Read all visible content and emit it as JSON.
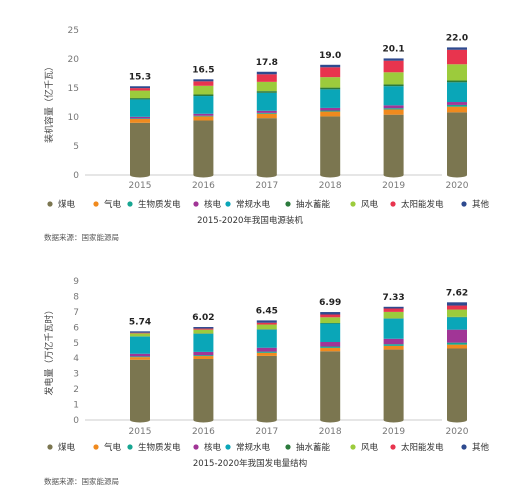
{
  "chart_data": [
    {
      "type": "bar",
      "stacked": true,
      "caption": "2015-2020年我国电源装机",
      "ylabel": "装机容量（亿千瓦）",
      "source": "数据来源：国家能源局",
      "ylim": [
        0,
        25
      ],
      "yticks": [
        0,
        5,
        10,
        15,
        20,
        25
      ],
      "categories": [
        "2015",
        "2016",
        "2017",
        "2018",
        "2019",
        "2020"
      ],
      "totals": [
        "15.3",
        "16.5",
        "17.8",
        "19.0",
        "20.1",
        "22.0"
      ],
      "series": [
        {
          "name": "煤电",
          "color": "#7b7650",
          "values": [
            9.0,
            9.4,
            9.8,
            10.1,
            10.4,
            10.8
          ]
        },
        {
          "name": "气电",
          "color": "#f08a1e",
          "values": [
            0.66,
            0.7,
            0.76,
            0.84,
            0.9,
            0.98
          ]
        },
        {
          "name": "生物质发电",
          "color": "#17a692",
          "values": [
            0.1,
            0.12,
            0.15,
            0.18,
            0.22,
            0.3
          ]
        },
        {
          "name": "核电",
          "color": "#a13596",
          "values": [
            0.27,
            0.34,
            0.36,
            0.45,
            0.49,
            0.5
          ]
        },
        {
          "name": "常规水电",
          "color": "#0aa6b8",
          "values": [
            3.0,
            3.05,
            3.1,
            3.2,
            3.3,
            3.4
          ]
        },
        {
          "name": "抽水蓄能",
          "color": "#2b7a3b",
          "values": [
            0.23,
            0.27,
            0.29,
            0.3,
            0.3,
            0.31
          ]
        },
        {
          "name": "风电",
          "color": "#9ccb3c",
          "values": [
            1.3,
            1.5,
            1.6,
            1.8,
            2.1,
            2.8
          ]
        },
        {
          "name": "太阳能发电",
          "color": "#e8344e",
          "values": [
            0.42,
            0.77,
            1.3,
            1.7,
            2.0,
            2.5
          ]
        },
        {
          "name": "其他",
          "color": "#2e4a8f",
          "values": [
            0.32,
            0.35,
            0.44,
            0.43,
            0.39,
            0.41
          ]
        }
      ]
    },
    {
      "type": "bar",
      "stacked": true,
      "caption": "2015-2020年我国发电量结构",
      "ylabel": "发电量（万亿千瓦时）",
      "source": "数据来源：国家能源局",
      "ylim": [
        0,
        9
      ],
      "yticks": [
        0,
        1,
        2,
        3,
        4,
        5,
        6,
        7,
        8,
        9
      ],
      "categories": [
        "2015",
        "2016",
        "2017",
        "2018",
        "2019",
        "2020"
      ],
      "totals": [
        "5.74",
        "6.02",
        "6.45",
        "6.99",
        "7.33",
        "7.62"
      ],
      "series": [
        {
          "name": "煤电",
          "color": "#7b7650",
          "values": [
            3.9,
            3.95,
            4.15,
            4.45,
            4.56,
            4.63
          ]
        },
        {
          "name": "气电",
          "color": "#f08a1e",
          "values": [
            0.17,
            0.19,
            0.2,
            0.22,
            0.24,
            0.25
          ]
        },
        {
          "name": "生物质发电",
          "color": "#17a692",
          "values": [
            0.05,
            0.06,
            0.08,
            0.09,
            0.11,
            0.13
          ]
        },
        {
          "name": "核电",
          "color": "#a13596",
          "values": [
            0.17,
            0.21,
            0.25,
            0.29,
            0.35,
            0.84
          ]
        },
        {
          "name": "常规水电",
          "color": "#0aa6b8",
          "values": [
            1.11,
            1.17,
            1.17,
            1.2,
            1.3,
            0.8
          ]
        },
        {
          "name": "抽水蓄能",
          "color": "#2b7a3b",
          "values": [
            0.02,
            0.03,
            0.03,
            0.03,
            0.03,
            0.03
          ]
        },
        {
          "name": "风电",
          "color": "#9ccb3c",
          "values": [
            0.19,
            0.24,
            0.3,
            0.37,
            0.41,
            0.47
          ]
        },
        {
          "name": "太阳能发电",
          "color": "#e8344e",
          "values": [
            0.04,
            0.07,
            0.12,
            0.18,
            0.22,
            0.26
          ]
        },
        {
          "name": "其他",
          "color": "#2e4a8f",
          "values": [
            0.09,
            0.1,
            0.15,
            0.16,
            0.11,
            0.21
          ]
        }
      ]
    }
  ]
}
